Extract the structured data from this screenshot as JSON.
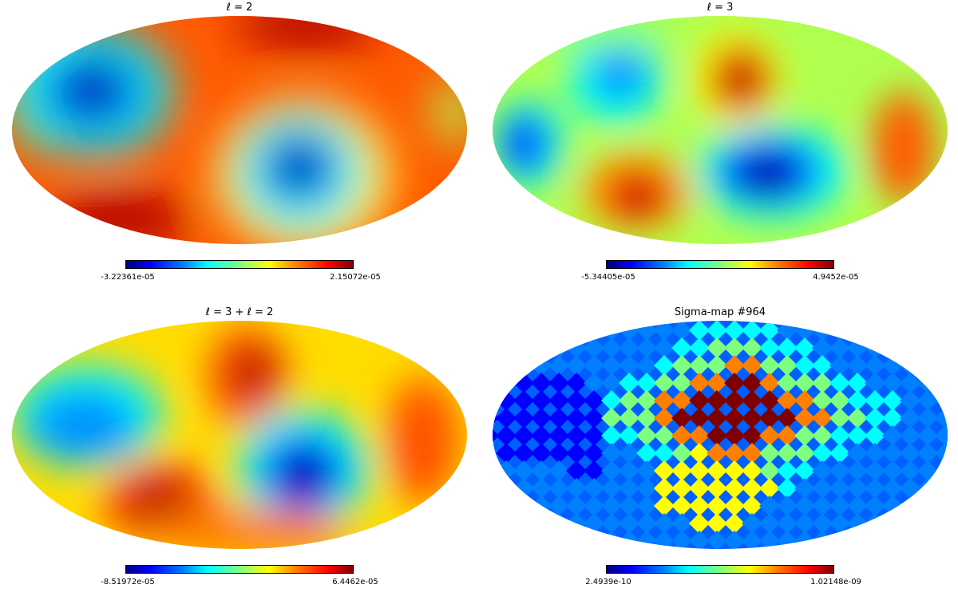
{
  "panels": [
    {
      "title": "ℓ = 2",
      "colorbar": {
        "min": "-3.22361e-05",
        "max": "2.15072e-05"
      }
    },
    {
      "title": "ℓ = 3",
      "colorbar": {
        "min": "-5.34405e-05",
        "max": "4.9452e-05"
      }
    },
    {
      "title": "ℓ = 3 + ℓ = 2",
      "colorbar": {
        "min": "-8.51972e-05",
        "max": "6.4462e-05"
      }
    },
    {
      "title": "Sigma-map #964",
      "colorbar": {
        "min": "2.4939e-10",
        "max": "1.02148e-09"
      }
    }
  ],
  "colormap": [
    "#00007f",
    "#0000ff",
    "#007fff",
    "#00ffff",
    "#7fff7f",
    "#ffff00",
    "#ff7f00",
    "#ff0000",
    "#7f0000"
  ]
}
